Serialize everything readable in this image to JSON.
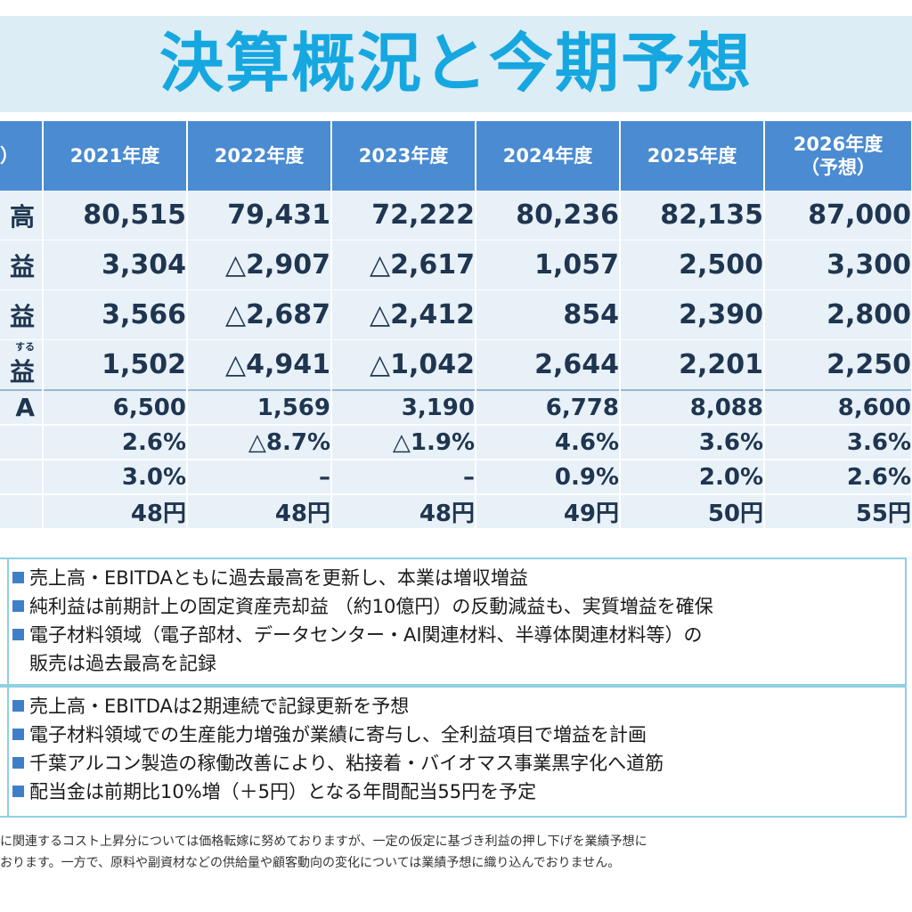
{
  "title": "決算概況と今期予想",
  "table": {
    "header_label": "）",
    "years": [
      "2021年度",
      "2022年度",
      "2023年度",
      "2024年度",
      "2025年度"
    ],
    "forecast_year": "2026年度",
    "forecast_note": "（予想）",
    "rows": [
      {
        "label": "高",
        "values": [
          "80,515",
          "79,431",
          "72,222",
          "80,236",
          "82,135",
          "87,000"
        ]
      },
      {
        "label": "益",
        "values": [
          "3,304",
          "△2,907",
          "△2,617",
          "1,057",
          "2,500",
          "3,300"
        ]
      },
      {
        "label": "益",
        "values": [
          "3,566",
          "△2,687",
          "△2,412",
          "854",
          "2,390",
          "2,800"
        ]
      },
      {
        "label_small": "する",
        "label": "益",
        "values": [
          "1,502",
          "△4,941",
          "△1,042",
          "2,644",
          "2,201",
          "2,250"
        ]
      },
      {
        "label": "A",
        "values": [
          "6,500",
          "1,569",
          "3,190",
          "6,778",
          "8,088",
          "8,600"
        ]
      },
      {
        "label": "",
        "values": [
          "2.6%",
          "△8.7%",
          "△1.9%",
          "4.6%",
          "3.6%",
          "3.6%"
        ]
      },
      {
        "label": "",
        "values": [
          "3.0%",
          "–",
          "–",
          "0.9%",
          "2.0%",
          "2.6%"
        ]
      },
      {
        "label": "",
        "values": [
          "48円",
          "48円",
          "48円",
          "49円",
          "50円",
          "55円"
        ]
      }
    ]
  },
  "results_bullets": [
    "売上高・EBITDAともに過去最高を更新し、本業は増収増益",
    "純利益は前期計上の固定資産売却益 （約10億円）の反動減益も、実質増益を確保",
    "電子材料領域（電子部材、データセンター・AI関連材料、半導体関連材料等）の",
    "販売は過去最高を記録"
  ],
  "forecast_bullets": [
    "売上高・EBITDAは2期連続で記録更新を予想",
    "電子材料領域での生産能力増強が業績に寄与し、全利益項目で増益を計画",
    "千葉アルコン製造の稼働改善により、粘接着・バイオマス事業黒字化へ道筋",
    "配当金は前期比10%増（＋5円）となる年間配当55円を予定"
  ],
  "footnote": [
    "に関連するコスト上昇分については価格転嫁に努めておりますが、一定の仮定に基づき利益の押し下げを業績予想に",
    "おります。一方で、原料や副資材などの供給量や顧客動向の変化については業績予想に織り込んでおりません。"
  ],
  "colors": {
    "title": "#17a7e0",
    "header_bg": "#4a8bd1",
    "cell_bg": "#e8f1f8",
    "box_border": "#8fd0e3",
    "bullet": "#3f7fc7"
  }
}
